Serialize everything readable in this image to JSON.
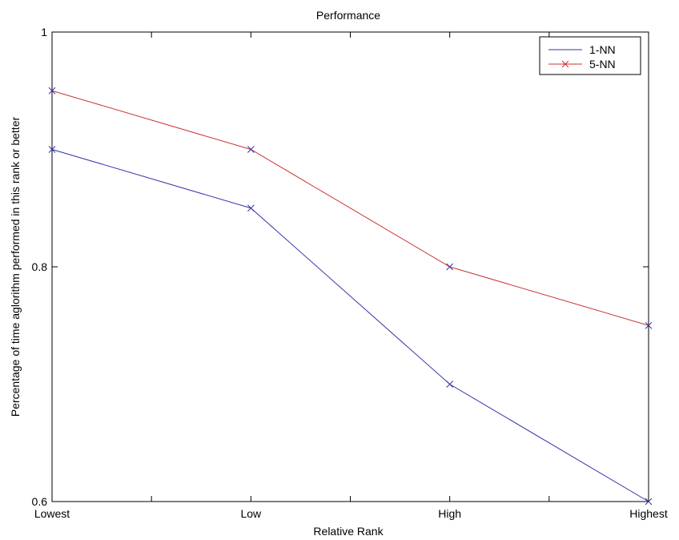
{
  "chart_data": {
    "type": "line",
    "title": "Performance",
    "xlabel": "Relative Rank",
    "ylabel": "Percentage of time aglorithm performed in this rank or better",
    "categories": [
      "Lowest",
      "Low",
      "High",
      "Highest"
    ],
    "ylim": [
      0.6,
      1
    ],
    "yticks": [
      0.6,
      0.8,
      1
    ],
    "ytick_labels": [
      "0.6",
      "0.8",
      "1"
    ],
    "grid": false,
    "legend_position": "top-right",
    "series": [
      {
        "name": "1-NN",
        "color": "#3333aa",
        "marker": "none",
        "values": [
          0.9,
          0.85,
          0.7,
          0.6
        ]
      },
      {
        "name": "5-NN",
        "color": "#cc3333",
        "marker": "x",
        "values": [
          0.95,
          0.9,
          0.8,
          0.75
        ]
      }
    ]
  }
}
